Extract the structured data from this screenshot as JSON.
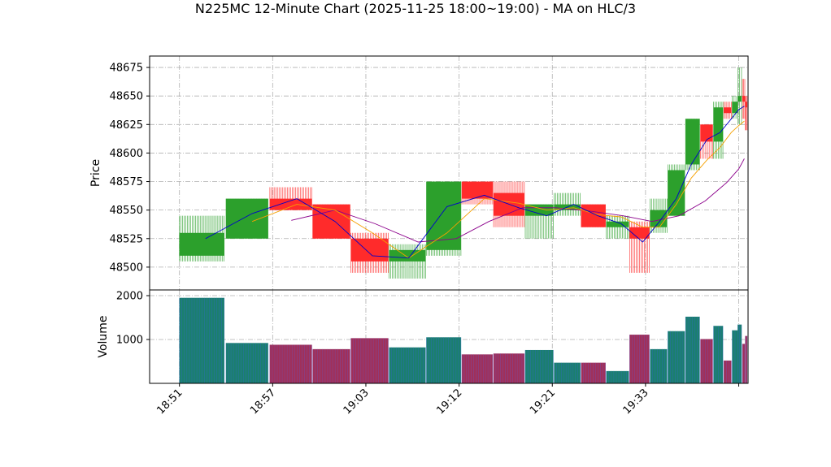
{
  "chart_data": {
    "type": "candlestick",
    "title": "N225MC 12-Minute Chart (2025-11-25 18:00~19:00) - MA on HLC/3",
    "ylabel_price": "Price",
    "ylabel_volume": "Volume",
    "price_ylim": [
      48480,
      48685
    ],
    "price_yticks": [
      48500,
      48525,
      48550,
      48575,
      48600,
      48625,
      48650,
      48675
    ],
    "volume_ylim": [
      0,
      2130
    ],
    "volume_yticks": [
      1000,
      2000
    ],
    "xlim": [
      -3.2,
      61.0
    ],
    "xticks": [
      {
        "x": 0,
        "label": "18:51"
      },
      {
        "x": 10,
        "label": "18:57"
      },
      {
        "x": 20,
        "label": "19:03"
      },
      {
        "x": 30,
        "label": "19:12"
      },
      {
        "x": 40,
        "label": "19:21"
      },
      {
        "x": 50,
        "label": "19:33"
      },
      {
        "x": 60,
        "label": ""
      }
    ],
    "colors": {
      "up": "#2ca02c",
      "down": "#ff2b2b",
      "ma_fast": "#0000cc",
      "ma_mid": "#f5a000",
      "ma_slow": "#8b008b",
      "volume_up": "#1b7f6e",
      "volume_down": "#a0305a"
    },
    "candles": [
      {
        "x": 0,
        "w": 4.8,
        "o": 48510,
        "h": 48545,
        "l": 48505,
        "c": 48530,
        "v": 1950
      },
      {
        "x": 5,
        "w": 4.5,
        "o": 48525,
        "h": 48560,
        "l": 48525,
        "c": 48560,
        "v": 920
      },
      {
        "x": 9.7,
        "w": 4.5,
        "o": 48560,
        "h": 48570,
        "l": 48550,
        "c": 48550,
        "v": 880
      },
      {
        "x": 14.3,
        "w": 4.0,
        "o": 48555,
        "h": 48555,
        "l": 48525,
        "c": 48525,
        "v": 780
      },
      {
        "x": 18.4,
        "w": 4.0,
        "o": 48525,
        "h": 48530,
        "l": 48495,
        "c": 48505,
        "v": 1030
      },
      {
        "x": 22.5,
        "w": 3.9,
        "o": 48505,
        "h": 48520,
        "l": 48490,
        "c": 48515,
        "v": 820
      },
      {
        "x": 26.5,
        "w": 3.7,
        "o": 48515,
        "h": 48575,
        "l": 48510,
        "c": 48575,
        "v": 1050
      },
      {
        "x": 30.3,
        "w": 3.3,
        "o": 48575,
        "h": 48575,
        "l": 48555,
        "c": 48560,
        "v": 660
      },
      {
        "x": 33.7,
        "w": 3.3,
        "o": 48565,
        "h": 48575,
        "l": 48535,
        "c": 48545,
        "v": 680
      },
      {
        "x": 37.1,
        "w": 3.0,
        "o": 48545,
        "h": 48555,
        "l": 48525,
        "c": 48555,
        "v": 760
      },
      {
        "x": 40.2,
        "w": 2.8,
        "o": 48550,
        "h": 48565,
        "l": 48545,
        "c": 48555,
        "v": 470
      },
      {
        "x": 43.1,
        "w": 2.6,
        "o": 48555,
        "h": 48555,
        "l": 48535,
        "c": 48535,
        "v": 470
      },
      {
        "x": 45.8,
        "w": 2.4,
        "o": 48535,
        "h": 48545,
        "l": 48525,
        "c": 48540,
        "v": 280
      },
      {
        "x": 48.3,
        "w": 2.1,
        "o": 48535,
        "h": 48540,
        "l": 48495,
        "c": 48525,
        "v": 1110
      },
      {
        "x": 50.5,
        "w": 1.8,
        "o": 48535,
        "h": 48560,
        "l": 48530,
        "c": 48550,
        "v": 780
      },
      {
        "x": 52.4,
        "w": 1.8,
        "o": 48545,
        "h": 48590,
        "l": 48545,
        "c": 48585,
        "v": 1190
      },
      {
        "x": 54.3,
        "w": 1.5,
        "o": 48590,
        "h": 48630,
        "l": 48585,
        "c": 48630,
        "v": 1520
      },
      {
        "x": 55.9,
        "w": 1.3,
        "o": 48625,
        "h": 48625,
        "l": 48595,
        "c": 48610,
        "v": 1010
      },
      {
        "x": 57.3,
        "w": 1.0,
        "o": 48610,
        "h": 48645,
        "l": 48595,
        "c": 48640,
        "v": 1310
      },
      {
        "x": 58.4,
        "w": 0.8,
        "o": 48640,
        "h": 48645,
        "l": 48630,
        "c": 48635,
        "v": 520
      },
      {
        "x": 59.3,
        "w": 0.6,
        "o": 48635,
        "h": 48650,
        "l": 48630,
        "c": 48645,
        "v": 1210
      },
      {
        "x": 59.9,
        "w": 0.4,
        "o": 48645,
        "h": 48675,
        "l": 48625,
        "c": 48650,
        "v": 1340
      },
      {
        "x": 60.4,
        "w": 0.25,
        "o": 48650,
        "h": 48665,
        "l": 48630,
        "c": 48645,
        "v": 900
      },
      {
        "x": 60.7,
        "w": 0.2,
        "o": 48645,
        "h": 48650,
        "l": 48620,
        "c": 48640,
        "v": 1080
      }
    ],
    "ma_fast": [
      [
        2.8,
        48525
      ],
      [
        7.8,
        48547
      ],
      [
        12.6,
        48560
      ],
      [
        16.7,
        48540
      ],
      [
        20.7,
        48510
      ],
      [
        24.6,
        48508
      ],
      [
        28.7,
        48553
      ],
      [
        32.7,
        48563
      ],
      [
        36.4,
        48552
      ],
      [
        39.4,
        48545
      ],
      [
        42.3,
        48555
      ],
      [
        44.9,
        48545
      ],
      [
        47.4,
        48538
      ],
      [
        49.7,
        48522
      ],
      [
        51.5,
        48540
      ],
      [
        53.3,
        48560
      ],
      [
        54.9,
        48590
      ],
      [
        56.6,
        48612
      ],
      [
        58.0,
        48618
      ],
      [
        59.2,
        48630
      ],
      [
        60.0,
        48638
      ],
      [
        60.6,
        48641
      ]
    ],
    "ma_mid": [
      [
        7.8,
        48540
      ],
      [
        12.6,
        48555
      ],
      [
        16.7,
        48550
      ],
      [
        20.7,
        48530
      ],
      [
        24.6,
        48508
      ],
      [
        28.7,
        48530
      ],
      [
        32.7,
        48560
      ],
      [
        36.4,
        48556
      ],
      [
        39.4,
        48550
      ],
      [
        42.3,
        48552
      ],
      [
        44.9,
        48546
      ],
      [
        47.4,
        48544
      ],
      [
        49.7,
        48535
      ],
      [
        51.5,
        48535
      ],
      [
        53.3,
        48555
      ],
      [
        54.9,
        48578
      ],
      [
        56.6,
        48594
      ],
      [
        58.0,
        48605
      ],
      [
        59.2,
        48618
      ],
      [
        60.0,
        48624
      ],
      [
        60.6,
        48628
      ]
    ],
    "ma_slow": [
      [
        12.0,
        48541
      ],
      [
        16.7,
        48550
      ],
      [
        21.0,
        48538
      ],
      [
        25.6,
        48522
      ],
      [
        29.7,
        48525
      ],
      [
        33.2,
        48540
      ],
      [
        36.8,
        48552
      ],
      [
        40.4,
        48552
      ],
      [
        44.1,
        48549
      ],
      [
        47.6,
        48545
      ],
      [
        50.7,
        48540
      ],
      [
        53.6,
        48545
      ],
      [
        56.4,
        48558
      ],
      [
        58.7,
        48574
      ],
      [
        60.0,
        48586
      ],
      [
        60.6,
        48595
      ]
    ]
  }
}
